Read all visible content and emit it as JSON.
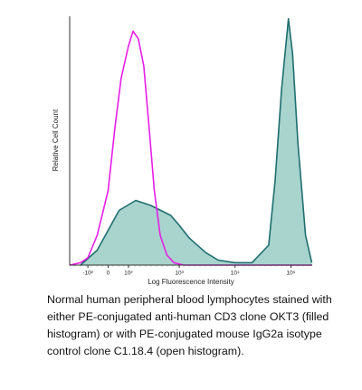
{
  "chart_data": {
    "type": "histogram-overlay",
    "ylabel": "Relative Cell Count",
    "xlabel": "Log Fluorescence Intensity",
    "xscale": "biexponential",
    "xlim": [
      -250,
      240000
    ],
    "ylim": [
      0,
      100
    ],
    "xticks": [
      {
        "value": -100,
        "label": "-10²"
      },
      0,
      {
        "value": 100,
        "label": "10²"
      },
      {
        "value": 1000,
        "label": "10³"
      },
      {
        "value": 10000,
        "label": "10⁴"
      },
      {
        "value": 100000,
        "label": "10⁵"
      }
    ],
    "series": [
      {
        "color": "#1f6e70",
        "fill": "#a8d4cd",
        "filled": true,
        "x": [
          -150,
          -50,
          0,
          50,
          150,
          300,
          700,
          1000,
          1500,
          3000,
          5000,
          10000,
          20000,
          40000,
          52000,
          68000,
          90000,
          107000,
          133000,
          182000,
          236000
        ],
        "values": [
          0,
          6,
          14,
          22,
          26,
          24,
          20,
          16,
          11,
          5,
          2,
          1,
          1,
          8,
          34,
          71,
          99,
          85,
          49,
          12,
          1
        ]
      },
      {
        "color": "#e61ee6",
        "filled": false,
        "x": [
          -250,
          -150,
          -100,
          -50,
          0,
          30,
          60,
          100,
          130,
          170,
          220,
          280,
          350,
          450,
          600,
          800,
          1200,
          240000
        ],
        "values": [
          0,
          1,
          3,
          12,
          30,
          55,
          75,
          88,
          94,
          91,
          80,
          55,
          30,
          12,
          4,
          1,
          0,
          0
        ]
      }
    ],
    "caption": [
      "Normal human peripheral blood lymphocytes stained with",
      "either PE-conjugated anti-human CD3 clone OKT3 (filled",
      "histogram) or with PE-conjugated mouse IgG2a isotype",
      "control clone C1.18.4 (open histogram)."
    ]
  }
}
